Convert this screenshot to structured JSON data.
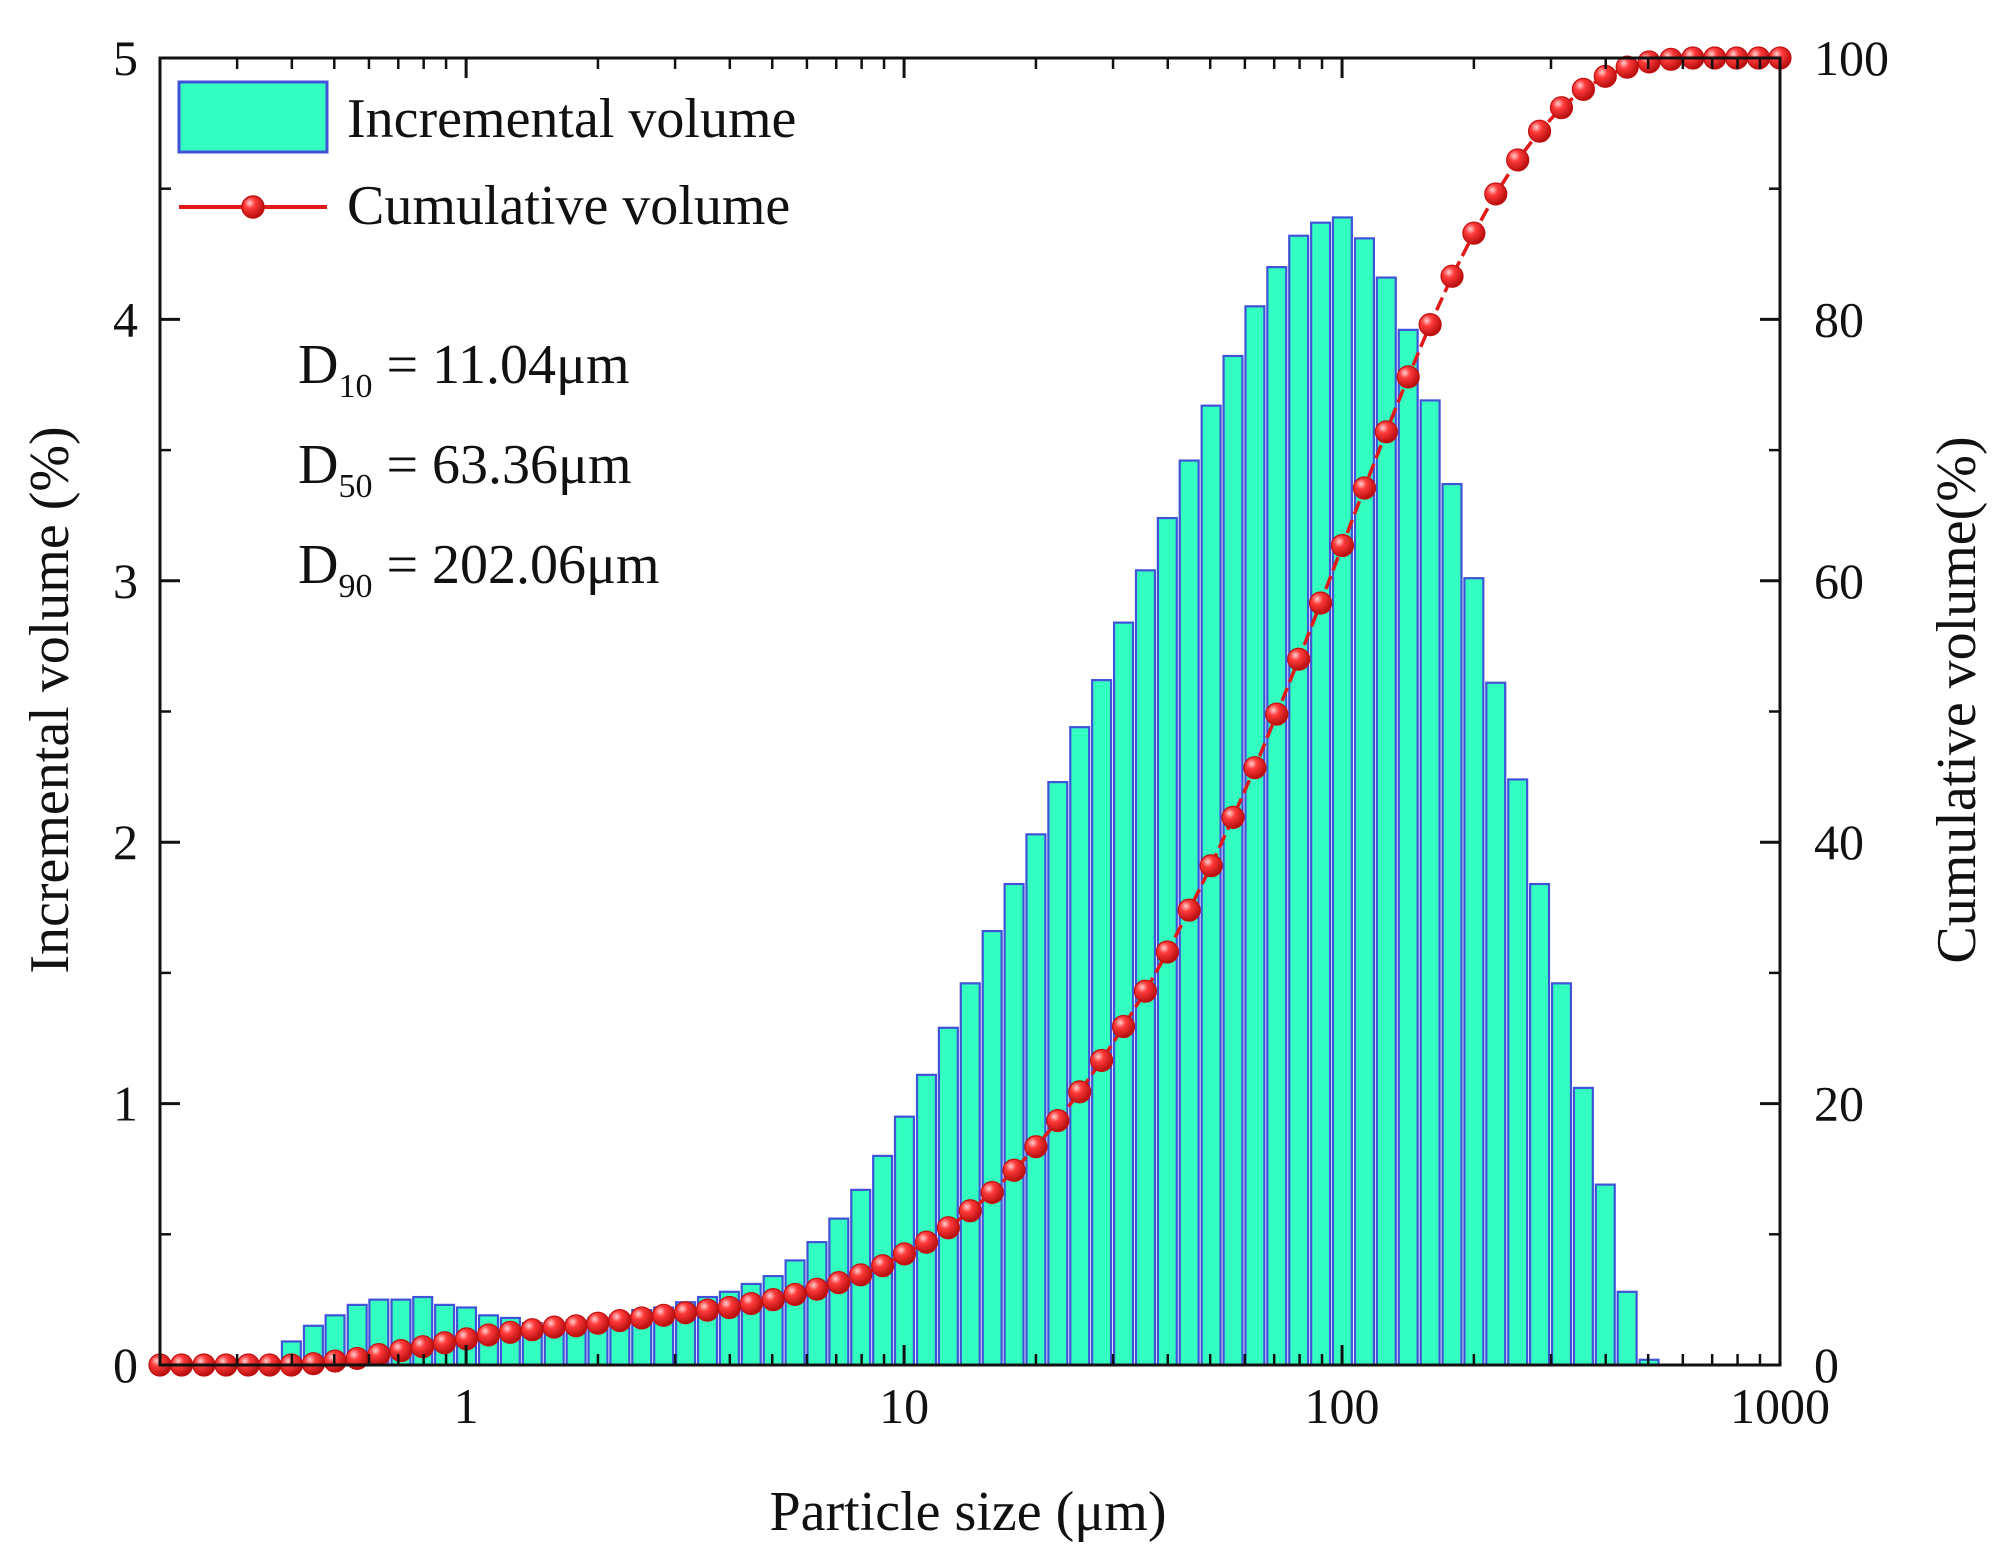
{
  "chart_data": {
    "type": "bar+line",
    "xscale": "log",
    "xlim": [
      0.2,
      1000
    ],
    "ylim_left": [
      0,
      5
    ],
    "ylim_right": [
      0,
      100
    ],
    "xlabel": "Particle size (μm)",
    "ylabel_left": "Incremental volume (%)",
    "ylabel_right": "Cumulative volume(%)",
    "x_ticks": [
      1,
      10,
      100,
      1000
    ],
    "x_tick_labels": [
      "1",
      "10",
      "100",
      "1000"
    ],
    "y_left_ticks": [
      0,
      1,
      2,
      3,
      4,
      5
    ],
    "y_left_tick_labels": [
      "0",
      "1",
      "2",
      "3",
      "4",
      "5"
    ],
    "y_right_ticks": [
      0,
      20,
      40,
      60,
      80,
      100
    ],
    "y_right_tick_labels": [
      "0",
      "20",
      "40",
      "60",
      "80",
      "100"
    ],
    "legend": {
      "position": "top-left",
      "entries": [
        "Incremental volume",
        "Cumulative volume"
      ]
    },
    "annotations": [
      {
        "label": "D",
        "sub": "10",
        "text": " = 11.04μm"
      },
      {
        "label": "D",
        "sub": "50",
        "text": " = 63.36μm"
      },
      {
        "label": "D",
        "sub": "90",
        "text": " = 202.06μm"
      }
    ],
    "colors": {
      "bar_fill": "#33ffc0",
      "bar_edge": "#3f52d8",
      "line": "#e01919",
      "marker": "#e01919"
    },
    "x": [
      0.2,
      0.224,
      0.252,
      0.283,
      0.318,
      0.356,
      0.399,
      0.448,
      0.502,
      0.564,
      0.632,
      0.71,
      0.796,
      0.893,
      1.002,
      1.125,
      1.262,
      1.416,
      1.589,
      1.783,
      2.0,
      2.244,
      2.518,
      2.825,
      3.17,
      3.557,
      3.991,
      4.477,
      5.024,
      5.637,
      6.325,
      7.096,
      7.962,
      8.934,
      10.02,
      11.25,
      12.62,
      14.16,
      15.89,
      17.83,
      20.0,
      22.44,
      25.18,
      28.25,
      31.7,
      35.57,
      39.91,
      44.77,
      50.24,
      56.37,
      63.25,
      70.96,
      79.62,
      89.34,
      100.2,
      112.5,
      126.2,
      141.6,
      158.9,
      178.3,
      200.0,
      224.4,
      251.8,
      282.5,
      317.0,
      355.7,
      399.1,
      447.7,
      502.4,
      563.7,
      632.5,
      709.6,
      796.2,
      893.4,
      1000
    ],
    "series": [
      {
        "name": "Incremental volume",
        "values": [
          0,
          0,
          0,
          0,
          0,
          0,
          0.09,
          0.15,
          0.19,
          0.23,
          0.25,
          0.25,
          0.26,
          0.23,
          0.22,
          0.19,
          0.18,
          0.16,
          0.16,
          0.17,
          0.18,
          0.19,
          0.21,
          0.22,
          0.24,
          0.26,
          0.28,
          0.31,
          0.34,
          0.4,
          0.47,
          0.56,
          0.67,
          0.8,
          0.95,
          1.11,
          1.29,
          1.46,
          1.66,
          1.84,
          2.03,
          2.23,
          2.44,
          2.62,
          2.84,
          3.04,
          3.24,
          3.46,
          3.67,
          3.86,
          4.05,
          4.2,
          4.32,
          4.37,
          4.39,
          4.31,
          4.16,
          3.96,
          3.69,
          3.37,
          3.01,
          2.61,
          2.24,
          1.84,
          1.46,
          1.06,
          0.69,
          0.28,
          0.02,
          0,
          0,
          0,
          0,
          0,
          0
        ]
      },
      {
        "name": "Cumulative volume",
        "values": [
          0,
          0,
          0,
          0,
          0,
          0,
          0,
          0.1,
          0.3,
          0.5,
          0.8,
          1.1,
          1.4,
          1.7,
          2.0,
          2.3,
          2.5,
          2.7,
          2.9,
          3.0,
          3.2,
          3.4,
          3.6,
          3.8,
          4.0,
          4.2,
          4.4,
          4.7,
          5.0,
          5.4,
          5.8,
          6.3,
          6.9,
          7.6,
          8.5,
          9.4,
          10.5,
          11.8,
          13.2,
          14.9,
          16.7,
          18.7,
          20.9,
          23.3,
          25.9,
          28.6,
          31.6,
          34.8,
          38.2,
          41.9,
          45.7,
          49.8,
          54.0,
          58.3,
          62.7,
          67.1,
          71.4,
          75.6,
          79.6,
          83.3,
          86.6,
          89.6,
          92.2,
          94.4,
          96.2,
          97.6,
          98.6,
          99.3,
          99.7,
          99.9,
          100,
          100,
          100,
          100,
          100
        ]
      }
    ]
  }
}
